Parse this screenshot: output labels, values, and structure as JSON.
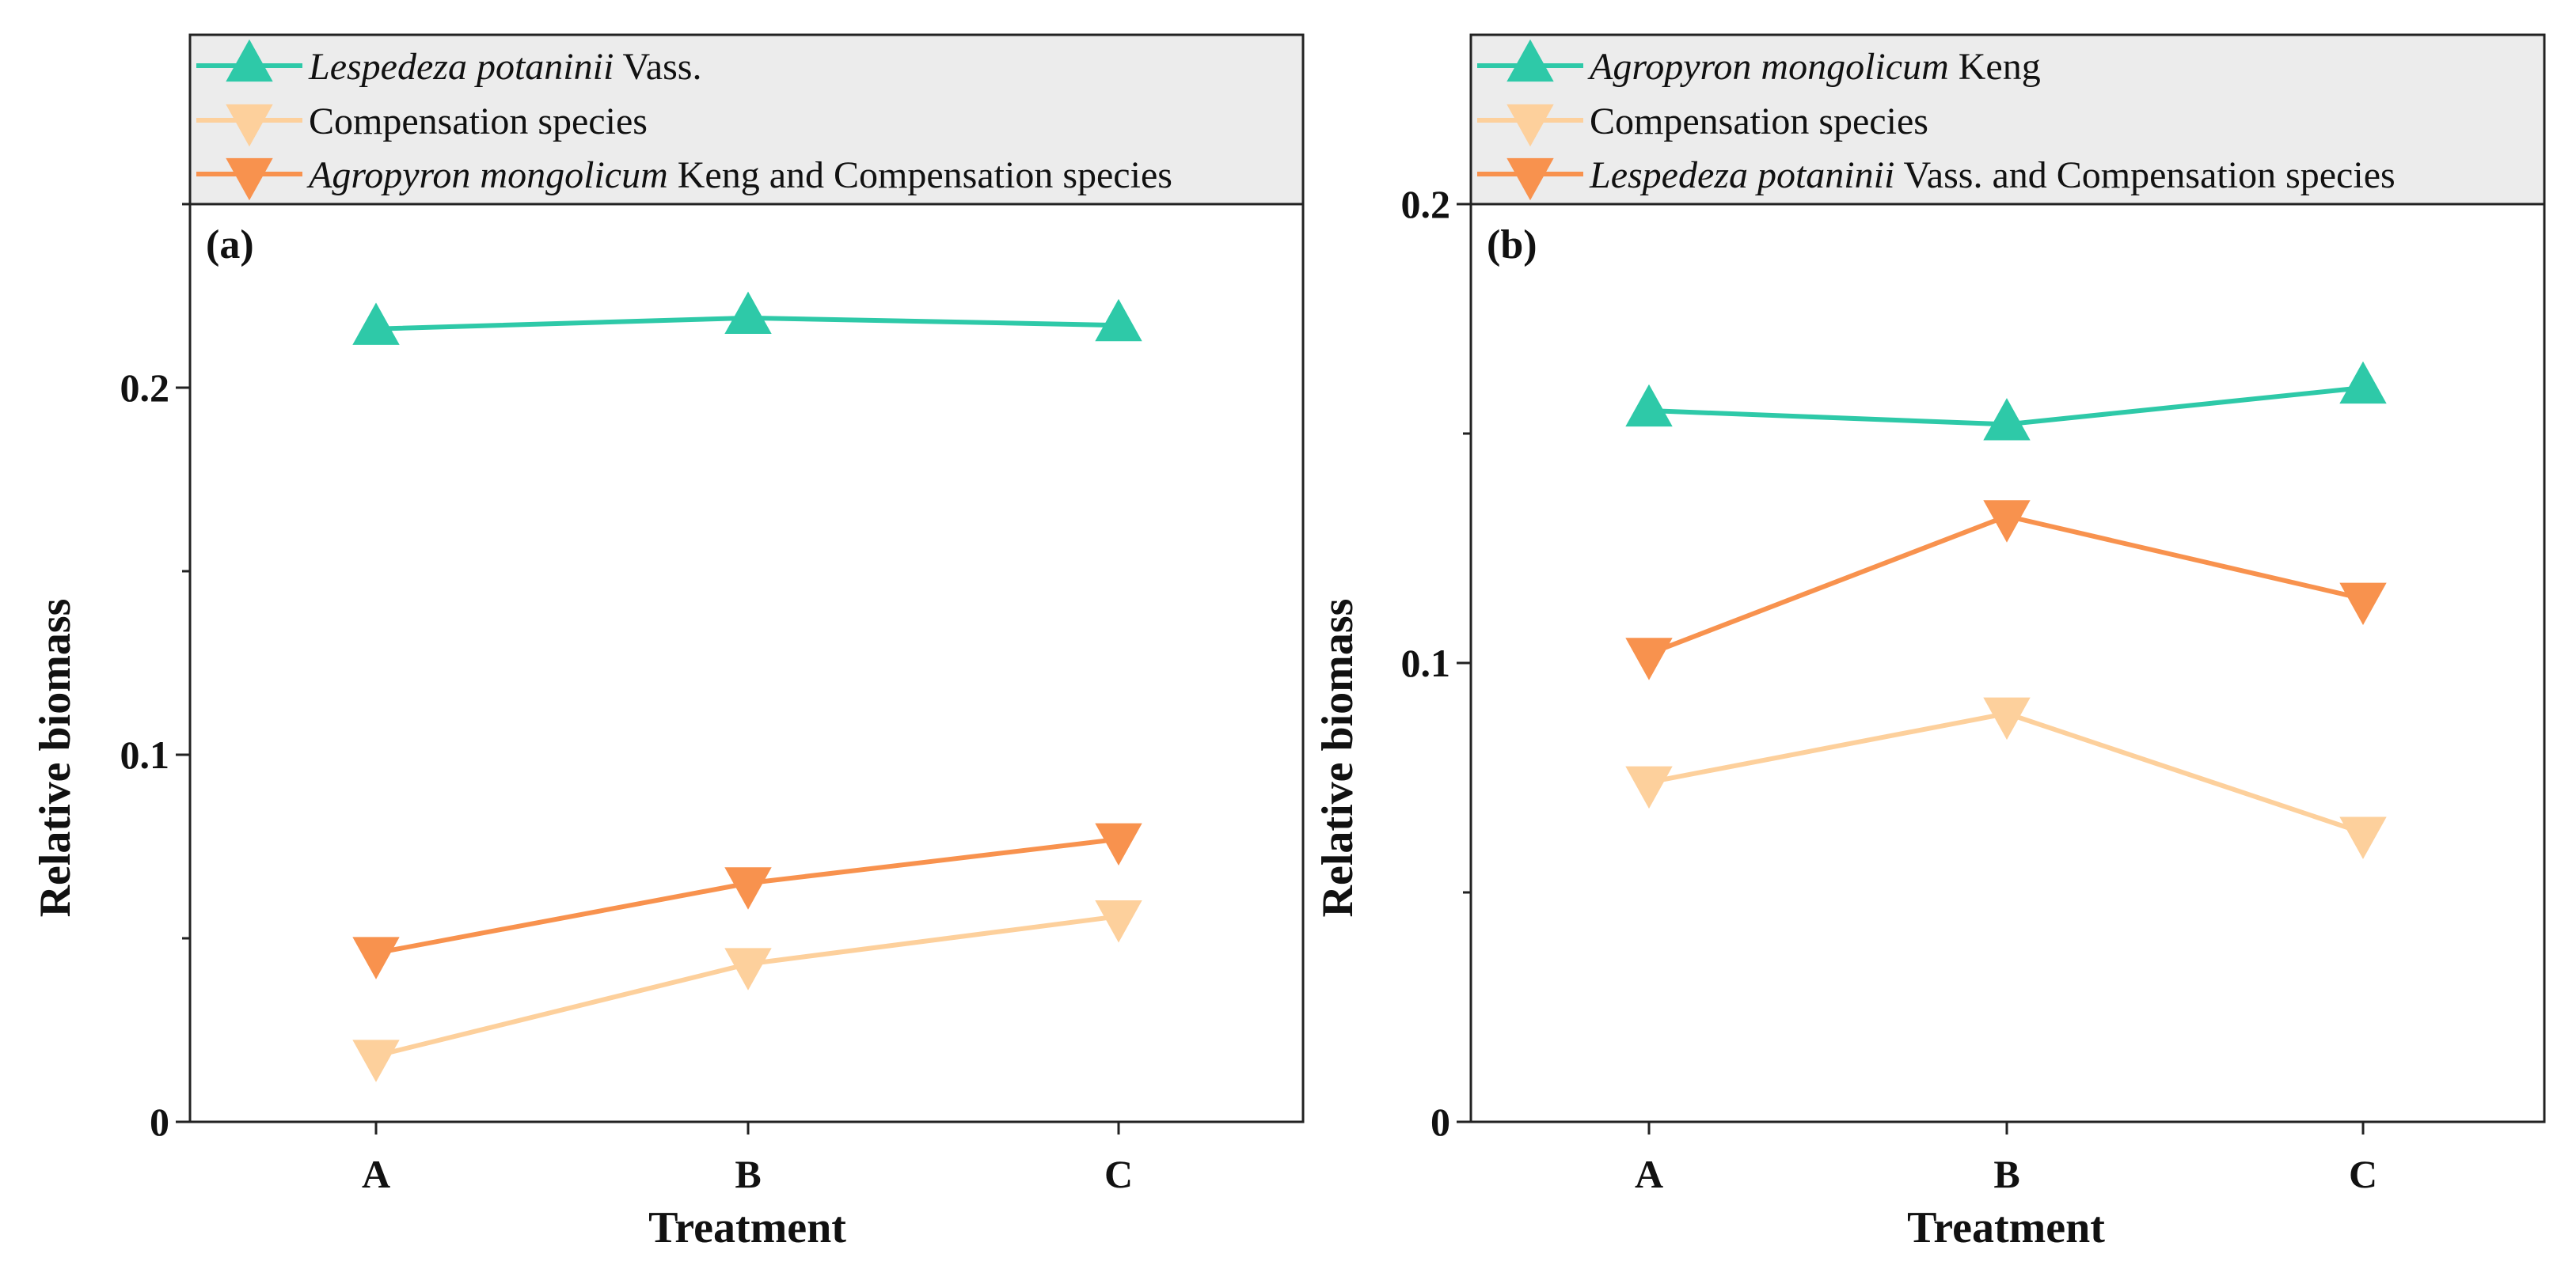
{
  "colors": {
    "teal": "#2ec9a8",
    "peach": "#fdd09c",
    "orange": "#f8924e",
    "legend_bg": "#ececec",
    "axis": "#222222"
  },
  "chart_data": [
    {
      "type": "line",
      "panel_label": "(a)",
      "xlabel": "Treatment",
      "ylabel": "Relative biomass",
      "categories": [
        "A",
        "B",
        "C"
      ],
      "ylim": [
        0,
        0.25
      ],
      "yticks": [
        0,
        0.1,
        0.2
      ],
      "ytick_labels": [
        "0",
        "0.1",
        "0.2"
      ],
      "legend": [
        {
          "italic": "Lespedeza potaninii",
          "rest": " Vass."
        },
        {
          "italic": "",
          "rest": "Compensation species"
        },
        {
          "italic": "Agropyron mongolicum",
          "rest": " Keng and Compensation species"
        }
      ],
      "series": [
        {
          "name": "Lespedeza potaninii Vass.",
          "marker": "triangle-up",
          "color": "teal",
          "values": [
            0.216,
            0.219,
            0.217
          ]
        },
        {
          "name": "Compensation species",
          "marker": "triangle-down",
          "color": "peach",
          "values": [
            0.018,
            0.043,
            0.056
          ]
        },
        {
          "name": "Agropyron mongolicum Keng and Compensation species",
          "marker": "triangle-down",
          "color": "orange",
          "values": [
            0.046,
            0.065,
            0.077
          ]
        }
      ]
    },
    {
      "type": "line",
      "panel_label": "(b)",
      "xlabel": "Treatment",
      "ylabel": "Relative biomass",
      "categories": [
        "A",
        "B",
        "C"
      ],
      "ylim": [
        0,
        0.2
      ],
      "yticks": [
        0,
        0.1,
        0.2
      ],
      "ytick_labels": [
        "0",
        "0.1",
        "0.2"
      ],
      "legend": [
        {
          "italic": "Agropyron mongolicum",
          "rest": " Keng"
        },
        {
          "italic": "",
          "rest": "Compensation species"
        },
        {
          "italic": "Lespedeza potaninii",
          "rest": " Vass. and Compensation species"
        }
      ],
      "series": [
        {
          "name": "Agropyron mongolicum Keng",
          "marker": "triangle-up",
          "color": "teal",
          "values": [
            0.155,
            0.152,
            0.16
          ]
        },
        {
          "name": "Compensation species",
          "marker": "triangle-down",
          "color": "peach",
          "values": [
            0.074,
            0.089,
            0.063
          ]
        },
        {
          "name": "Lespedeza potaninii Vass. and Compensation species",
          "marker": "triangle-down",
          "color": "orange",
          "values": [
            0.102,
            0.132,
            0.114
          ]
        }
      ]
    }
  ]
}
